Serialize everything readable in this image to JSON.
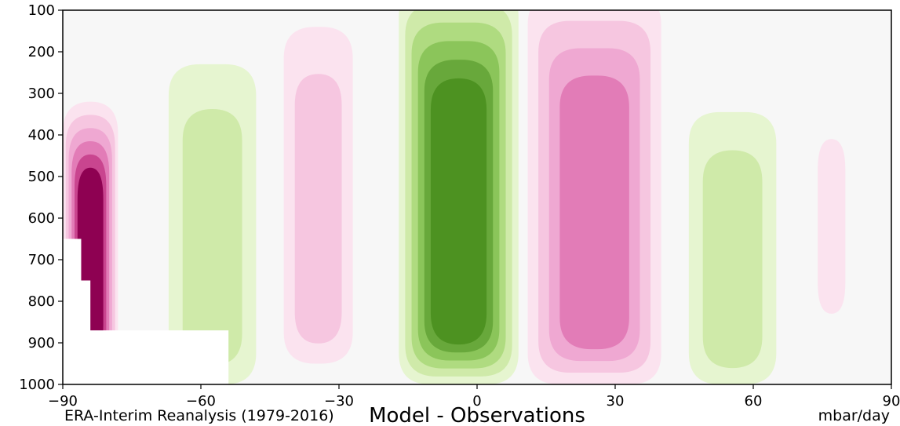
{
  "chart_data": {
    "type": "heatmap",
    "title": "Model - Observations",
    "footer_left": "ERA-Interim Reanalysis (1979-2016)",
    "units": "mbar/day",
    "x_ticks": [
      -90,
      -60,
      -30,
      0,
      30,
      60,
      90
    ],
    "y_ticks": [
      100,
      200,
      300,
      400,
      500,
      600,
      700,
      800,
      900,
      1000
    ],
    "xlim": [
      -90,
      90
    ],
    "ylim": [
      1000,
      100
    ],
    "y_inverted": true,
    "colormap": "PiYG (pink = positive, green = negative)",
    "colors": {
      "background": "#f7f7f7",
      "pink_levels": [
        "#fbe3ef",
        "#f6c6e0",
        "#efa8d2",
        "#e27cb7",
        "#c9458f",
        "#8e0152"
      ],
      "green_levels": [
        "#e6f5d0",
        "#cfeaa9",
        "#afdb80",
        "#8bc55a",
        "#68a83b",
        "#4d9221"
      ],
      "masked": "#ffffff"
    },
    "features": [
      {
        "sign": "positive",
        "lat": [
          -90,
          -78
        ],
        "p": [
          320,
          1000
        ],
        "peak_level": 6
      },
      {
        "sign": "negative",
        "lat": [
          -67,
          -48
        ],
        "p": [
          230,
          1000
        ],
        "peak_level": 2
      },
      {
        "sign": "positive",
        "lat": [
          -42,
          -27
        ],
        "p": [
          140,
          950
        ],
        "peak_level": 2
      },
      {
        "sign": "negative",
        "lat": [
          -17,
          9
        ],
        "p": [
          40,
          1000
        ],
        "peak_level": 6
      },
      {
        "sign": "positive",
        "lat": [
          11,
          40
        ],
        "p": [
          60,
          1000
        ],
        "peak_level": 4
      },
      {
        "sign": "negative",
        "lat": [
          46,
          65
        ],
        "p": [
          345,
          1000
        ],
        "peak_level": 2
      },
      {
        "sign": "positive",
        "lat": [
          74,
          80
        ],
        "p": [
          410,
          830
        ],
        "peak_level": 1
      }
    ]
  }
}
